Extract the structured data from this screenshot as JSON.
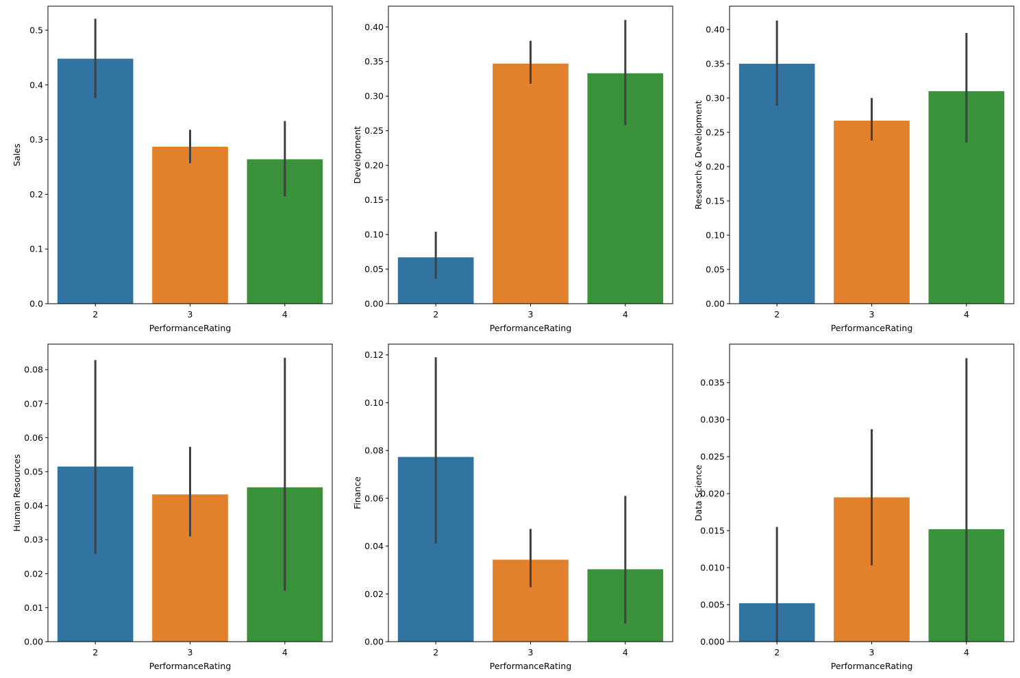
{
  "chart_data": [
    {
      "type": "bar",
      "title": "",
      "xlabel": "PerformanceRating",
      "ylabel": "Sales",
      "categories": [
        "2",
        "3",
        "4"
      ],
      "values": [
        0.448,
        0.287,
        0.264
      ],
      "errors": [
        [
          0.376,
          0.521
        ],
        [
          0.257,
          0.318
        ],
        [
          0.196,
          0.334
        ]
      ],
      "ylim": [
        0,
        0.544
      ],
      "yticks": [
        "0.0",
        "0.1",
        "0.2",
        "0.3",
        "0.4",
        "0.5"
      ],
      "colors": [
        "#3274a1",
        "#e1812c",
        "#3a923a"
      ],
      "grid": false
    },
    {
      "type": "bar",
      "title": "",
      "xlabel": "PerformanceRating",
      "ylabel": "Development",
      "categories": [
        "2",
        "3",
        "4"
      ],
      "values": [
        0.067,
        0.347,
        0.333
      ],
      "errors": [
        [
          0.036,
          0.104
        ],
        [
          0.318,
          0.38
        ],
        [
          0.258,
          0.41
        ]
      ],
      "ylim": [
        0,
        0.43
      ],
      "yticks": [
        "0.00",
        "0.05",
        "0.10",
        "0.15",
        "0.20",
        "0.25",
        "0.30",
        "0.35",
        "0.40"
      ],
      "colors": [
        "#3274a1",
        "#e1812c",
        "#3a923a"
      ],
      "grid": false
    },
    {
      "type": "bar",
      "title": "",
      "xlabel": "PerformanceRating",
      "ylabel": "Research & Development",
      "categories": [
        "2",
        "3",
        "4"
      ],
      "values": [
        0.35,
        0.267,
        0.31
      ],
      "errors": [
        [
          0.289,
          0.413
        ],
        [
          0.238,
          0.3
        ],
        [
          0.235,
          0.395
        ]
      ],
      "ylim": [
        0,
        0.434
      ],
      "yticks": [
        "0.00",
        "0.05",
        "0.10",
        "0.15",
        "0.20",
        "0.25",
        "0.30",
        "0.35",
        "0.40"
      ],
      "colors": [
        "#3274a1",
        "#e1812c",
        "#3a923a"
      ],
      "grid": false
    },
    {
      "type": "bar",
      "title": "",
      "xlabel": "PerformanceRating",
      "ylabel": "Human Resources",
      "categories": [
        "2",
        "3",
        "4"
      ],
      "values": [
        0.0515,
        0.0433,
        0.0454
      ],
      "errors": [
        [
          0.0258,
          0.0828
        ],
        [
          0.031,
          0.0573
        ],
        [
          0.015,
          0.0835
        ]
      ],
      "ylim": [
        0,
        0.0875
      ],
      "yticks": [
        "0.00",
        "0.01",
        "0.02",
        "0.03",
        "0.04",
        "0.05",
        "0.06",
        "0.07",
        "0.08"
      ],
      "colors": [
        "#3274a1",
        "#e1812c",
        "#3a923a"
      ],
      "grid": false
    },
    {
      "type": "bar",
      "title": "",
      "xlabel": "PerformanceRating",
      "ylabel": "Finance",
      "categories": [
        "2",
        "3",
        "4"
      ],
      "values": [
        0.0773,
        0.0343,
        0.0303
      ],
      "errors": [
        [
          0.0412,
          0.119
        ],
        [
          0.0228,
          0.0472
        ],
        [
          0.0076,
          0.061
        ]
      ],
      "ylim": [
        0,
        0.1245
      ],
      "yticks": [
        "0.00",
        "0.02",
        "0.04",
        "0.06",
        "0.08",
        "0.10",
        "0.12"
      ],
      "colors": [
        "#3274a1",
        "#e1812c",
        "#3a923a"
      ],
      "grid": false
    },
    {
      "type": "bar",
      "title": "",
      "xlabel": "PerformanceRating",
      "ylabel": "Data Science",
      "categories": [
        "2",
        "3",
        "4"
      ],
      "values": [
        0.0052,
        0.0195,
        0.0152
      ],
      "errors": [
        [
          0.0,
          0.0155
        ],
        [
          0.0103,
          0.0287
        ],
        [
          0.0,
          0.0383
        ]
      ],
      "ylim": [
        0,
        0.0402
      ],
      "yticks": [
        "0.000",
        "0.005",
        "0.010",
        "0.015",
        "0.020",
        "0.025",
        "0.030",
        "0.035"
      ],
      "colors": [
        "#3274a1",
        "#e1812c",
        "#3a923a"
      ],
      "grid": false
    }
  ]
}
